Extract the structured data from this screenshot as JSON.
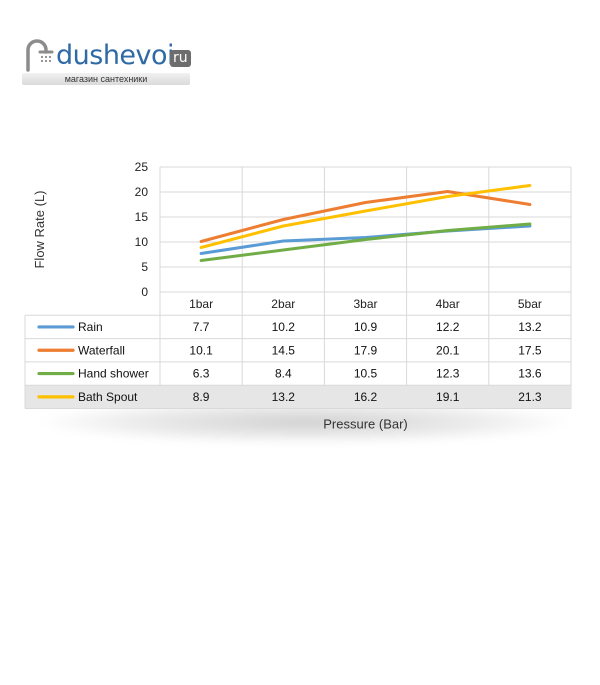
{
  "logo": {
    "brand": "dushevoi",
    "tld": "ru",
    "tagline": "магазин сантехники"
  },
  "chart_data": {
    "type": "line",
    "categories": [
      "1bar",
      "2bar",
      "3bar",
      "4bar",
      "5bar"
    ],
    "series": [
      {
        "name": "Rain",
        "color": "#5b9bd5",
        "values": [
          7.7,
          10.2,
          10.9,
          12.2,
          13.2
        ]
      },
      {
        "name": "Waterfall",
        "color": "#ed7d31",
        "values": [
          10.1,
          14.5,
          17.9,
          20.1,
          17.5
        ]
      },
      {
        "name": "Hand shower",
        "color": "#70ad47",
        "values": [
          6.3,
          8.4,
          10.5,
          12.3,
          13.6
        ]
      },
      {
        "name": "Bath Spout",
        "color": "#ffc000",
        "values": [
          8.9,
          13.2,
          16.2,
          19.1,
          21.3
        ]
      }
    ],
    "value_labels": [
      [
        "7.7",
        "10.2",
        "10.9",
        "12.2",
        "13.2"
      ],
      [
        "10.1",
        "14.5",
        "17.9",
        "20.1",
        "17.5"
      ],
      [
        "6.3",
        "8.4",
        "10.5",
        "12.3",
        "13.6"
      ],
      [
        "8.9",
        "13.2",
        "16.2",
        "19.1",
        "21.3"
      ]
    ],
    "xlabel": "Pressure (Bar)",
    "ylabel": "Flow Rate (L)",
    "ylim": [
      0,
      25
    ],
    "yticks": [
      0,
      5,
      10,
      15,
      20,
      25
    ],
    "ytick_labels": [
      "0",
      "5",
      "10",
      "15",
      "20",
      "25"
    ],
    "grid": true,
    "legend": "data-table",
    "colors": {
      "grid": "#d9d9d9",
      "table_band": "#e6e6e6"
    }
  }
}
